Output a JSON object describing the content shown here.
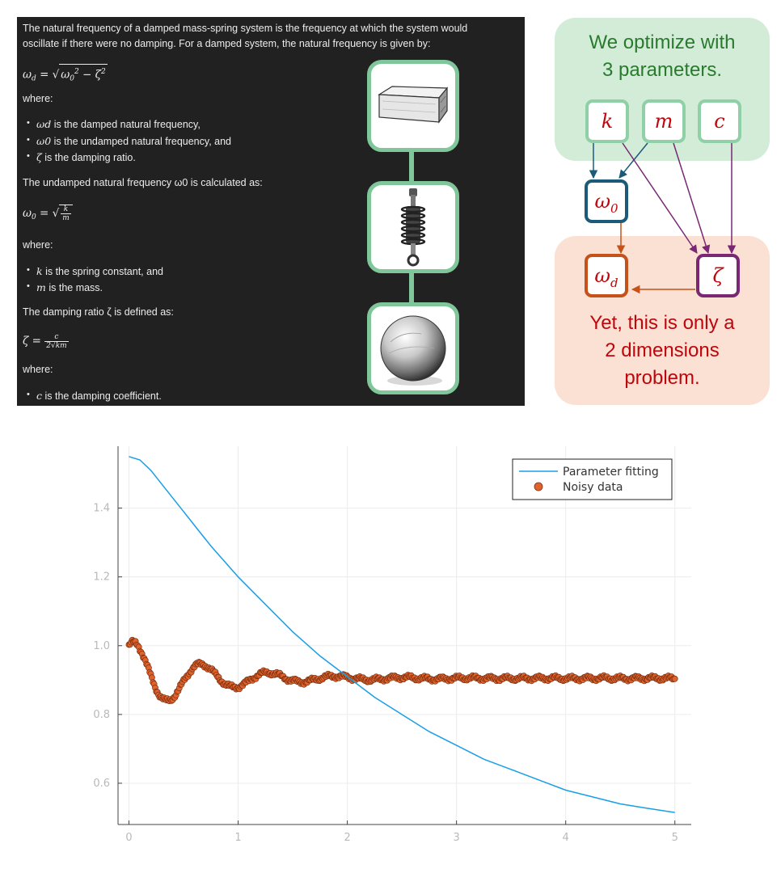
{
  "text_panel": {
    "intro_line1": "The natural frequency of a damped mass-spring system is the frequency at which the system would",
    "intro_line2": "oscillate if there were no damping. For a damped system, the natural frequency is given by:",
    "where": "where:",
    "bullets_1": [
      {
        "sym": "ωd",
        "text": "is the damped natural frequency,"
      },
      {
        "sym": "ω0",
        "text": "is the undamped natural frequency, and"
      },
      {
        "sym": "ζ",
        "text": "is the damping ratio."
      }
    ],
    "undamped_line": "The undamped natural frequency ω0 is calculated as:",
    "bullets_2": [
      {
        "sym": "k",
        "text": "is the spring constant, and"
      },
      {
        "sym": "m",
        "text": "is the mass."
      }
    ],
    "damping_line": "The damping ratio ζ is defined as:",
    "bullets_3": [
      {
        "sym": "c",
        "text": "is the damping coefficient."
      }
    ]
  },
  "diagram": {
    "caption_top": [
      "We optimize with",
      "3 parameters."
    ],
    "caption_bottom": [
      "Yet, this is only a",
      "2 dimensions",
      "problem."
    ],
    "nodes": {
      "k": "k",
      "m": "m",
      "c": "c",
      "omega0": "ω",
      "omega0_sub": "0",
      "omegad": "ω",
      "omegad_sub": "d",
      "zeta": "ζ"
    }
  },
  "chart_data": {
    "type": "line",
    "x_ticks": [
      "0",
      "1",
      "2",
      "3",
      "4",
      "5"
    ],
    "y_ticks": [
      "0.6",
      "0.8",
      "1.0",
      "1.2",
      "1.4"
    ],
    "xlim": [
      -0.1,
      5.15
    ],
    "ylim": [
      0.48,
      1.58
    ],
    "grid": true,
    "legend_position": "top-right",
    "series": [
      {
        "name": "Parameter fitting",
        "kind": "line",
        "color": "#1a9ee9",
        "x": [
          0,
          0.1,
          0.2,
          0.3,
          0.4,
          0.5,
          0.6,
          0.75,
          1.0,
          1.25,
          1.5,
          1.75,
          2.0,
          2.25,
          2.5,
          2.75,
          3.0,
          3.25,
          3.5,
          3.75,
          4.0,
          4.25,
          4.5,
          4.75,
          5.0
        ],
        "y": [
          1.55,
          1.54,
          1.51,
          1.47,
          1.43,
          1.39,
          1.35,
          1.29,
          1.2,
          1.12,
          1.04,
          0.97,
          0.91,
          0.85,
          0.8,
          0.75,
          0.71,
          0.67,
          0.64,
          0.61,
          0.58,
          0.56,
          0.54,
          0.527,
          0.515
        ]
      },
      {
        "name": "Noisy data",
        "kind": "scatter",
        "color": "#e0622c",
        "model": {
          "equilibrium": 0.905,
          "amplitude": 0.095,
          "decay": 1.5,
          "omega": 10.2,
          "phase": 0.56,
          "noise": 0.008,
          "x_start": 0,
          "x_end": 5,
          "n_points": 500
        }
      }
    ]
  }
}
